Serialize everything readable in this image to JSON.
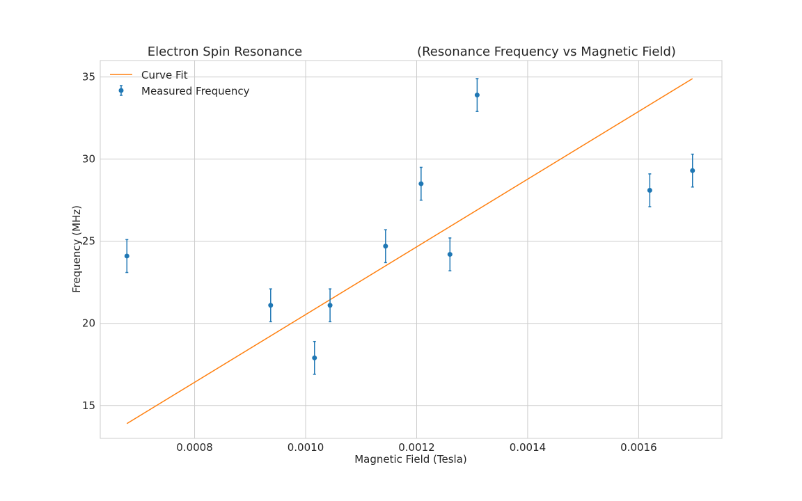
{
  "chart_data": {
    "type": "scatter",
    "title_left": "Electron Spin Resonance",
    "title_right": "(Resonance Frequency vs Magnetic Field)",
    "xlabel": "Magnetic Field (Tesla)",
    "ylabel": "Frequency (MHz)",
    "xlim": [
      0.00063,
      0.00175
    ],
    "ylim": [
      13.0,
      36.0
    ],
    "x_ticks": [
      0.0008,
      0.001,
      0.0012,
      0.0014,
      0.0016
    ],
    "x_tick_labels": [
      "0.0008",
      "0.0010",
      "0.0012",
      "0.0014",
      "0.0016"
    ],
    "y_ticks": [
      15,
      20,
      25,
      30,
      35
    ],
    "y_tick_labels": [
      "15",
      "20",
      "25",
      "30",
      "35"
    ],
    "grid": true,
    "legend_position": "top-left",
    "series": [
      {
        "name": "Measured Frequency",
        "kind": "errorbar",
        "color": "#1f77b4",
        "x": [
          0.000678,
          0.000937,
          0.001016,
          0.001044,
          0.001144,
          0.001208,
          0.00126,
          0.001309,
          0.00162,
          0.001697
        ],
        "y": [
          24.1,
          21.1,
          17.9,
          21.1,
          24.7,
          28.5,
          24.2,
          33.9,
          28.1,
          29.3
        ],
        "yerr": [
          1.0,
          1.0,
          1.0,
          1.0,
          1.0,
          1.0,
          1.0,
          1.0,
          1.0,
          1.0
        ]
      },
      {
        "name": "Curve Fit",
        "kind": "line",
        "color": "#ff7f0e",
        "x": [
          0.000678,
          0.001697
        ],
        "y": [
          13.9,
          34.9
        ]
      }
    ]
  }
}
